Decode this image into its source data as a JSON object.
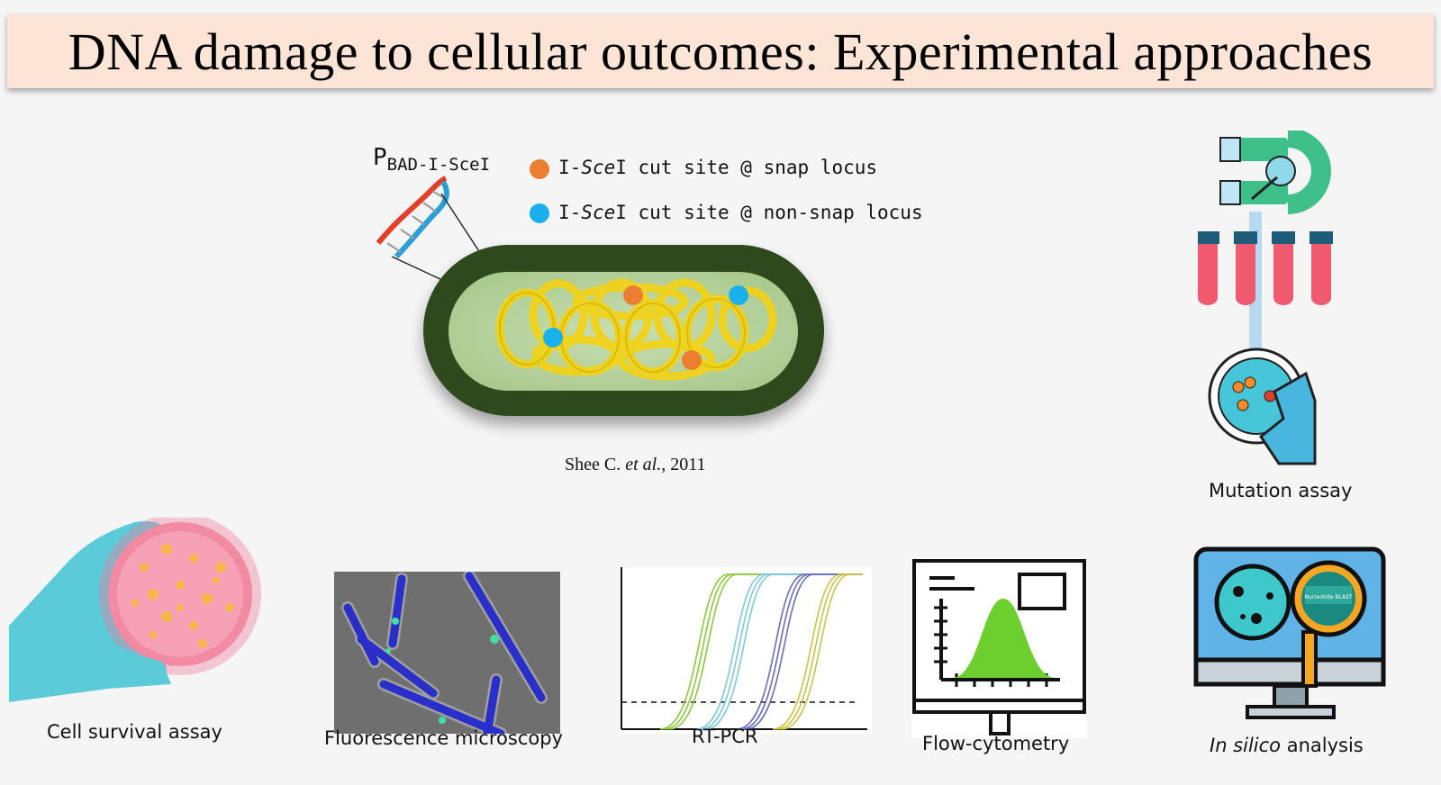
{
  "title": "DNA damage to cellular outcomes: Experimental approaches",
  "promoter": {
    "main": "P",
    "sub": "BAD-I-SceI"
  },
  "legend": [
    {
      "prefix": "I-",
      "italic": "Sce",
      "rest": "I cut site @ snap locus",
      "color": "#ed7d31"
    },
    {
      "prefix": "I-",
      "italic": "Sce",
      "rest": "I cut site @ non-snap locus",
      "color": "#1ab0ec"
    }
  ],
  "citation": {
    "author": "Shee C. ",
    "etal": "et al.",
    "year": ", 2011"
  },
  "methods": {
    "mutation": "Mutation assay",
    "survival": "Cell survival assay",
    "microscopy": "Fluorescence microscopy",
    "rtpcr": "RT-PCR",
    "flow": "Flow-cytometry",
    "insilico_italic": "In silico",
    "insilico_rest": " analysis",
    "blast_label": "Nucleotide BLAST"
  },
  "colors": {
    "banner": "#fce4d6",
    "cell_wall": "#2d4a1e",
    "chromosome": "#f2d31b",
    "tube": "#f05a6e",
    "screen": "#5fb3e6"
  }
}
